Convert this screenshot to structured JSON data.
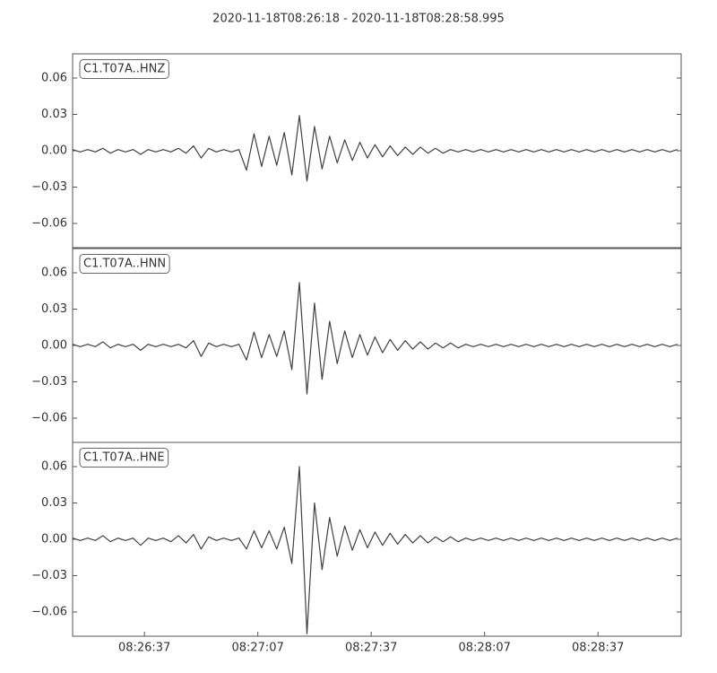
{
  "chart_data": [
    {
      "type": "line",
      "title": "2020-11-18T08:26:18  -  2020-11-18T08:28:58.995",
      "label": "C1.T07A..HNZ",
      "color": "#404040",
      "xlim": [
        "2020-11-18T08:26:18",
        "2020-11-18T08:28:58.995"
      ],
      "x": [
        "08:26:18",
        "08:26:20",
        "08:26:22",
        "08:26:24",
        "08:26:26",
        "08:26:28",
        "08:26:30",
        "08:26:32",
        "08:26:34",
        "08:26:36",
        "08:26:38",
        "08:26:40",
        "08:26:42",
        "08:26:44",
        "08:26:46",
        "08:26:48",
        "08:26:50",
        "08:26:52",
        "08:26:54",
        "08:26:56",
        "08:26:58",
        "08:27:00",
        "08:27:02",
        "08:27:04",
        "08:27:06",
        "08:27:08",
        "08:27:10",
        "08:27:12",
        "08:27:14",
        "08:27:16",
        "08:27:18",
        "08:27:20",
        "08:27:22",
        "08:27:24",
        "08:27:26",
        "08:27:28",
        "08:27:30",
        "08:27:32",
        "08:27:34",
        "08:27:36",
        "08:27:38",
        "08:27:40",
        "08:27:42",
        "08:27:44",
        "08:27:46",
        "08:27:48",
        "08:27:50",
        "08:27:52",
        "08:27:54",
        "08:27:56",
        "08:27:58",
        "08:28:00",
        "08:28:02",
        "08:28:04",
        "08:28:06",
        "08:28:08",
        "08:28:10",
        "08:28:12",
        "08:28:14",
        "08:28:16",
        "08:28:18",
        "08:28:20",
        "08:28:22",
        "08:28:24",
        "08:28:26",
        "08:28:28",
        "08:28:30",
        "08:28:32",
        "08:28:34",
        "08:28:36",
        "08:28:38",
        "08:28:40",
        "08:28:42",
        "08:28:44",
        "08:28:46",
        "08:28:48",
        "08:28:50",
        "08:28:52",
        "08:28:54",
        "08:28:56",
        "08:28:58"
      ],
      "values": [
        0.001,
        -0.001,
        0.001,
        -0.001,
        0.002,
        -0.002,
        0.001,
        -0.001,
        0.001,
        -0.003,
        0.001,
        -0.001,
        0.001,
        -0.001,
        0.002,
        -0.002,
        0.004,
        -0.006,
        0.002,
        -0.001,
        0.001,
        -0.001,
        0.001,
        -0.016,
        0.014,
        -0.013,
        0.012,
        -0.012,
        0.015,
        -0.02,
        0.029,
        -0.025,
        0.02,
        -0.015,
        0.012,
        -0.01,
        0.009,
        -0.008,
        0.007,
        -0.006,
        0.005,
        -0.005,
        0.004,
        -0.004,
        0.003,
        -0.003,
        0.003,
        -0.002,
        0.002,
        -0.002,
        0.001,
        -0.001,
        0.001,
        -0.001,
        0.001,
        -0.001,
        0.001,
        -0.001,
        0.001,
        -0.001,
        0.001,
        -0.001,
        0.001,
        -0.001,
        0.001,
        -0.001,
        0.001,
        -0.001,
        0.001,
        -0.001,
        0.001,
        -0.001,
        0.001,
        -0.001,
        0.001,
        -0.001,
        0.001,
        -0.001,
        0.001,
        -0.001,
        0.001
      ],
      "ylim": [
        -0.08,
        0.08
      ],
      "yticks": [
        0.06,
        0.03,
        {
          "value": 0,
          "label": "0.00"
        },
        {
          "value": -0.03,
          "label": "−0.03"
        },
        {
          "value": -0.06,
          "label": "−0.06"
        }
      ]
    },
    {
      "type": "line",
      "label": "C1.T07A..HNN",
      "color": "#404040",
      "xlim": [
        "2020-11-18T08:26:18",
        "2020-11-18T08:28:58.995"
      ],
      "x": [
        "08:26:18",
        "08:26:20",
        "08:26:22",
        "08:26:24",
        "08:26:26",
        "08:26:28",
        "08:26:30",
        "08:26:32",
        "08:26:34",
        "08:26:36",
        "08:26:38",
        "08:26:40",
        "08:26:42",
        "08:26:44",
        "08:26:46",
        "08:26:48",
        "08:26:50",
        "08:26:52",
        "08:26:54",
        "08:26:56",
        "08:26:58",
        "08:27:00",
        "08:27:02",
        "08:27:04",
        "08:27:06",
        "08:27:08",
        "08:27:10",
        "08:27:12",
        "08:27:14",
        "08:27:16",
        "08:27:18",
        "08:27:20",
        "08:27:22",
        "08:27:24",
        "08:27:26",
        "08:27:28",
        "08:27:30",
        "08:27:32",
        "08:27:34",
        "08:27:36",
        "08:27:38",
        "08:27:40",
        "08:27:42",
        "08:27:44",
        "08:27:46",
        "08:27:48",
        "08:27:50",
        "08:27:52",
        "08:27:54",
        "08:27:56",
        "08:27:58",
        "08:28:00",
        "08:28:02",
        "08:28:04",
        "08:28:06",
        "08:28:08",
        "08:28:10",
        "08:28:12",
        "08:28:14",
        "08:28:16",
        "08:28:18",
        "08:28:20",
        "08:28:22",
        "08:28:24",
        "08:28:26",
        "08:28:28",
        "08:28:30",
        "08:28:32",
        "08:28:34",
        "08:28:36",
        "08:28:38",
        "08:28:40",
        "08:28:42",
        "08:28:44",
        "08:28:46",
        "08:28:48",
        "08:28:50",
        "08:28:52",
        "08:28:54",
        "08:28:56",
        "08:28:58"
      ],
      "values": [
        0.001,
        -0.001,
        0.001,
        -0.001,
        0.003,
        -0.002,
        0.001,
        -0.001,
        0.001,
        -0.004,
        0.001,
        -0.001,
        0.001,
        -0.001,
        0.001,
        -0.002,
        0.004,
        -0.009,
        0.002,
        -0.001,
        0.001,
        -0.001,
        0.001,
        -0.012,
        0.011,
        -0.01,
        0.009,
        -0.009,
        0.012,
        -0.02,
        0.052,
        -0.04,
        0.035,
        -0.028,
        0.02,
        -0.015,
        0.012,
        -0.01,
        0.009,
        -0.008,
        0.007,
        -0.006,
        0.005,
        -0.004,
        0.004,
        -0.003,
        0.003,
        -0.003,
        0.002,
        -0.002,
        0.002,
        -0.002,
        0.001,
        -0.001,
        0.001,
        -0.001,
        0.001,
        -0.001,
        0.001,
        -0.001,
        0.001,
        -0.001,
        0.001,
        -0.001,
        0.001,
        -0.001,
        0.001,
        -0.001,
        0.001,
        -0.001,
        0.001,
        -0.001,
        0.001,
        -0.001,
        0.001,
        -0.001,
        0.001,
        -0.001,
        0.001,
        -0.001,
        0.001
      ],
      "ylim": [
        -0.08,
        0.08
      ],
      "yticks": [
        0.06,
        0.03,
        {
          "value": 0,
          "label": "0.00"
        },
        {
          "value": -0.03,
          "label": "−0.03"
        },
        {
          "value": -0.06,
          "label": "−0.06"
        }
      ]
    },
    {
      "type": "line",
      "label": "C1.T07A..HNE",
      "color": "#404040",
      "xlim": [
        "2020-11-18T08:26:18",
        "2020-11-18T08:28:58.995"
      ],
      "x": [
        "08:26:18",
        "08:26:20",
        "08:26:22",
        "08:26:24",
        "08:26:26",
        "08:26:28",
        "08:26:30",
        "08:26:32",
        "08:26:34",
        "08:26:36",
        "08:26:38",
        "08:26:40",
        "08:26:42",
        "08:26:44",
        "08:26:46",
        "08:26:48",
        "08:26:50",
        "08:26:52",
        "08:26:54",
        "08:26:56",
        "08:26:58",
        "08:27:00",
        "08:27:02",
        "08:27:04",
        "08:27:06",
        "08:27:08",
        "08:27:10",
        "08:27:12",
        "08:27:14",
        "08:27:16",
        "08:27:18",
        "08:27:20",
        "08:27:22",
        "08:27:24",
        "08:27:26",
        "08:27:28",
        "08:27:30",
        "08:27:32",
        "08:27:34",
        "08:27:36",
        "08:27:38",
        "08:27:40",
        "08:27:42",
        "08:27:44",
        "08:27:46",
        "08:27:48",
        "08:27:50",
        "08:27:52",
        "08:27:54",
        "08:27:56",
        "08:27:58",
        "08:28:00",
        "08:28:02",
        "08:28:04",
        "08:28:06",
        "08:28:08",
        "08:28:10",
        "08:28:12",
        "08:28:14",
        "08:28:16",
        "08:28:18",
        "08:28:20",
        "08:28:22",
        "08:28:24",
        "08:28:26",
        "08:28:28",
        "08:28:30",
        "08:28:32",
        "08:28:34",
        "08:28:36",
        "08:28:38",
        "08:28:40",
        "08:28:42",
        "08:28:44",
        "08:28:46",
        "08:28:48",
        "08:28:50",
        "08:28:52",
        "08:28:54",
        "08:28:56",
        "08:28:58"
      ],
      "values": [
        0.001,
        -0.001,
        0.001,
        -0.001,
        0.003,
        -0.002,
        0.001,
        -0.001,
        0.001,
        -0.005,
        0.001,
        -0.001,
        0.001,
        -0.002,
        0.003,
        -0.003,
        0.004,
        -0.008,
        0.002,
        -0.001,
        0.001,
        -0.001,
        0.001,
        -0.008,
        0.007,
        -0.007,
        0.007,
        -0.008,
        0.01,
        -0.02,
        0.06,
        -0.078,
        0.03,
        -0.025,
        0.018,
        -0.014,
        0.011,
        -0.009,
        0.008,
        -0.007,
        0.006,
        -0.005,
        0.005,
        -0.004,
        0.004,
        -0.003,
        0.003,
        -0.003,
        0.002,
        -0.002,
        0.002,
        -0.002,
        0.001,
        -0.001,
        0.001,
        -0.001,
        0.001,
        -0.001,
        0.001,
        -0.001,
        0.001,
        -0.001,
        0.001,
        -0.001,
        0.001,
        -0.001,
        0.001,
        -0.001,
        0.001,
        -0.001,
        0.001,
        -0.001,
        0.001,
        -0.001,
        0.001,
        -0.001,
        0.001,
        -0.001,
        0.001,
        -0.001,
        0.001
      ],
      "ylim": [
        -0.08,
        0.08
      ],
      "yticks": [
        0.06,
        0.03,
        {
          "value": 0,
          "label": "0.00"
        },
        {
          "value": -0.03,
          "label": "−0.03"
        },
        {
          "value": -0.06,
          "label": "−0.06"
        }
      ],
      "xticks": [
        "08:26:37",
        "08:27:07",
        "08:27:37",
        "08:28:07",
        "08:28:37"
      ]
    }
  ]
}
